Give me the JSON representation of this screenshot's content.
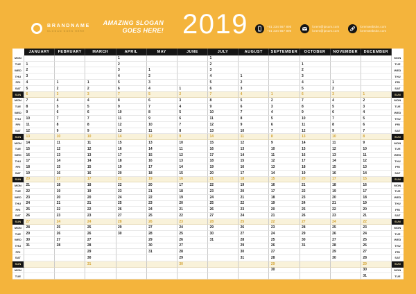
{
  "colors": {
    "background": "#F4B43C",
    "header_bar": "#151515",
    "sunday_row_bg": "#F9F2DA",
    "sunday_number": "#D2A336",
    "grid_vline": "#c9c9c9",
    "grid_hline": "#e8e8e8"
  },
  "header": {
    "brand": {
      "name": "BRANDNAME",
      "tagline": "SLOGAN GOES HERE"
    },
    "slogan_line1": "AMAZING SLOGAN",
    "slogan_line2": "GOES HERE!",
    "year": "2019",
    "contacts": [
      {
        "icon": "phone-icon",
        "lines": [
          "+01 234 567 890",
          "+01 234 567 890"
        ]
      },
      {
        "icon": "email-icon",
        "lines": [
          "lorem@ipsum.com",
          "lorem@ipsum.com"
        ]
      },
      {
        "icon": "website-icon",
        "lines": [
          "loremwebsite.com",
          "loremwebsite.com"
        ]
      }
    ]
  },
  "calendar": {
    "day_labels": [
      "MON",
      "TUE",
      "WED",
      "THU",
      "FRI",
      "SAT",
      "SUN",
      "MON",
      "TUE",
      "WED",
      "THU",
      "FRI",
      "SAT",
      "SUN",
      "MON",
      "TUE",
      "WED",
      "THU",
      "FRI",
      "SAT",
      "SUN",
      "MON",
      "TUE",
      "WED",
      "THU",
      "FRI",
      "SAT",
      "SUN",
      "MON",
      "TUE",
      "WED",
      "THU",
      "FRI",
      "SAT",
      "SUN",
      "MON",
      "TUE"
    ],
    "months": [
      {
        "label": "JANUARY",
        "cells": [
          "",
          1,
          2,
          3,
          4,
          5,
          6,
          7,
          8,
          9,
          10,
          11,
          12,
          13,
          14,
          15,
          16,
          17,
          18,
          19,
          20,
          21,
          22,
          23,
          24,
          25,
          26,
          27,
          28,
          29,
          30,
          31,
          "",
          "",
          "",
          "",
          ""
        ]
      },
      {
        "label": "FEBRUARY",
        "cells": [
          "",
          "",
          "",
          "",
          1,
          2,
          3,
          4,
          5,
          6,
          7,
          8,
          9,
          10,
          11,
          12,
          13,
          14,
          15,
          16,
          17,
          18,
          19,
          20,
          21,
          22,
          23,
          24,
          25,
          26,
          27,
          28,
          "",
          "",
          "",
          "",
          ""
        ]
      },
      {
        "label": "MARCH",
        "cells": [
          "",
          "",
          "",
          "",
          1,
          2,
          3,
          4,
          5,
          6,
          7,
          8,
          9,
          10,
          11,
          12,
          13,
          14,
          15,
          16,
          17,
          18,
          19,
          20,
          21,
          22,
          23,
          24,
          25,
          26,
          27,
          28,
          29,
          30,
          31,
          "",
          ""
        ]
      },
      {
        "label": "APRIL",
        "cells": [
          1,
          2,
          3,
          4,
          5,
          6,
          7,
          8,
          9,
          10,
          11,
          12,
          13,
          14,
          15,
          16,
          17,
          18,
          19,
          20,
          21,
          22,
          23,
          24,
          25,
          26,
          27,
          28,
          29,
          30,
          "",
          "",
          "",
          "",
          "",
          "",
          ""
        ]
      },
      {
        "label": "MAY",
        "cells": [
          "",
          "",
          1,
          2,
          3,
          4,
          5,
          6,
          7,
          8,
          9,
          10,
          11,
          12,
          13,
          14,
          15,
          16,
          17,
          18,
          19,
          20,
          21,
          22,
          23,
          24,
          25,
          26,
          27,
          28,
          29,
          30,
          31,
          "",
          "",
          "",
          ""
        ]
      },
      {
        "label": "JUNE",
        "cells": [
          "",
          "",
          "",
          "",
          "",
          1,
          2,
          3,
          4,
          5,
          6,
          7,
          8,
          9,
          10,
          11,
          12,
          13,
          14,
          15,
          16,
          17,
          18,
          19,
          20,
          21,
          22,
          23,
          24,
          25,
          26,
          27,
          28,
          29,
          30,
          "",
          ""
        ]
      },
      {
        "label": "JULY",
        "cells": [
          1,
          2,
          3,
          4,
          5,
          6,
          7,
          8,
          9,
          10,
          11,
          12,
          13,
          14,
          15,
          16,
          17,
          18,
          19,
          20,
          21,
          22,
          23,
          24,
          25,
          26,
          27,
          28,
          29,
          30,
          31,
          "",
          "",
          "",
          "",
          "",
          ""
        ]
      },
      {
        "label": "AUGUST",
        "cells": [
          "",
          "",
          "",
          1,
          2,
          3,
          4,
          5,
          6,
          7,
          8,
          9,
          10,
          11,
          12,
          13,
          14,
          15,
          16,
          17,
          18,
          19,
          20,
          21,
          22,
          23,
          24,
          25,
          26,
          27,
          28,
          29,
          30,
          31,
          "",
          "",
          ""
        ]
      },
      {
        "label": "SEPTEMBER",
        "cells": [
          "",
          "",
          "",
          "",
          "",
          "",
          1,
          2,
          3,
          4,
          5,
          6,
          7,
          8,
          9,
          10,
          11,
          12,
          13,
          14,
          15,
          16,
          17,
          18,
          19,
          20,
          21,
          22,
          23,
          24,
          25,
          26,
          27,
          28,
          29,
          30,
          ""
        ]
      },
      {
        "label": "OCTOBER",
        "cells": [
          "",
          1,
          2,
          3,
          4,
          5,
          6,
          7,
          8,
          9,
          10,
          11,
          12,
          13,
          14,
          15,
          16,
          17,
          18,
          19,
          20,
          21,
          22,
          23,
          24,
          25,
          26,
          27,
          28,
          29,
          30,
          31,
          "",
          "",
          "",
          "",
          ""
        ]
      },
      {
        "label": "NOVEMBER",
        "cells": [
          "",
          "",
          "",
          "",
          1,
          2,
          3,
          4,
          5,
          6,
          7,
          8,
          9,
          10,
          11,
          12,
          13,
          14,
          15,
          16,
          17,
          18,
          19,
          20,
          21,
          22,
          23,
          24,
          25,
          26,
          27,
          28,
          29,
          30,
          "",
          "",
          ""
        ]
      },
      {
        "label": "DECEMBER",
        "cells": [
          "",
          "",
          "",
          "",
          "",
          "",
          1,
          2,
          3,
          4,
          5,
          6,
          7,
          8,
          9,
          10,
          11,
          12,
          13,
          14,
          15,
          16,
          17,
          18,
          19,
          20,
          21,
          22,
          23,
          24,
          25,
          26,
          27,
          28,
          29,
          30,
          31
        ]
      }
    ]
  }
}
